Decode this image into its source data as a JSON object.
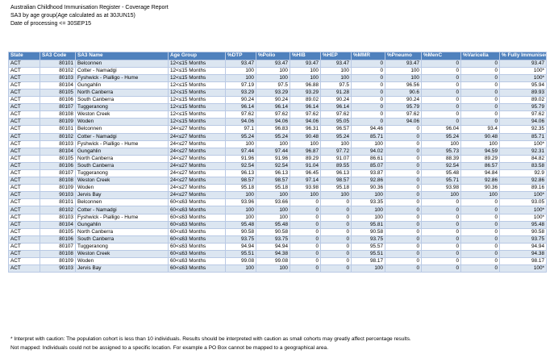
{
  "report": {
    "title": "Australian Childhood Immunisation Register - Coverage Report",
    "subtitle": "SA3 by age group(Age calculated as at 30JUN15)",
    "processing_date": "Date of processing <= 30SEP15"
  },
  "table": {
    "columns": [
      "State",
      "SA3 Code",
      "SA3 Name",
      "Age Group",
      "%DTP",
      "%Polio",
      "%HIB",
      "%HEP",
      "%MMR",
      "%Pneumo",
      "%MenC",
      "%Varicella",
      "% Fully Immunised"
    ],
    "rows": [
      [
        "ACT",
        "80101",
        "Belconnen",
        "12<≤15 Months",
        "93.47",
        "93.47",
        "93.47",
        "93.47",
        "0",
        "93.47",
        "0",
        "0",
        "93.47"
      ],
      [
        "ACT",
        "80102",
        "Cotter - Namadgi",
        "12<≤15 Months",
        "100",
        "100",
        "100",
        "100",
        "0",
        "100",
        "0",
        "0",
        "100*"
      ],
      [
        "ACT",
        "80103",
        "Fyshwick - Pialligo - Hume",
        "12<≤15 Months",
        "100",
        "100",
        "100",
        "100",
        "0",
        "100",
        "0",
        "0",
        "100*"
      ],
      [
        "ACT",
        "80104",
        "Gungahlin",
        "12<≤15 Months",
        "97.19",
        "97.5",
        "96.88",
        "97.5",
        "0",
        "96.56",
        "0",
        "0",
        "95.94"
      ],
      [
        "ACT",
        "80105",
        "North Canberra",
        "12<≤15 Months",
        "93.29",
        "93.29",
        "93.29",
        "91.28",
        "0",
        "90.6",
        "0",
        "0",
        "89.93"
      ],
      [
        "ACT",
        "80106",
        "South Canberra",
        "12<≤15 Months",
        "90.24",
        "90.24",
        "89.02",
        "90.24",
        "0",
        "90.24",
        "0",
        "0",
        "89.02"
      ],
      [
        "ACT",
        "80107",
        "Tuggeranong",
        "12<≤15 Months",
        "96.14",
        "96.14",
        "96.14",
        "96.14",
        "0",
        "95.79",
        "0",
        "0",
        "95.79"
      ],
      [
        "ACT",
        "80108",
        "Weston Creek",
        "12<≤15 Months",
        "97.62",
        "97.62",
        "97.62",
        "97.62",
        "0",
        "97.62",
        "0",
        "0",
        "97.62"
      ],
      [
        "ACT",
        "80109",
        "Woden",
        "12<≤15 Months",
        "94.06",
        "94.06",
        "94.06",
        "95.05",
        "0",
        "94.06",
        "0",
        "0",
        "94.06"
      ],
      [
        "ACT",
        "80101",
        "Belconnen",
        "24<≤27 Months",
        "97.1",
        "96.83",
        "96.31",
        "96.57",
        "94.46",
        "0",
        "96.04",
        "93.4",
        "92.35"
      ],
      [
        "ACT",
        "80102",
        "Cotter - Namadgi",
        "24<≤27 Months",
        "95.24",
        "95.24",
        "90.48",
        "95.24",
        "85.71",
        "0",
        "95.24",
        "90.48",
        "85.71"
      ],
      [
        "ACT",
        "80103",
        "Fyshwick - Pialligo - Hume",
        "24<≤27 Months",
        "100",
        "100",
        "100",
        "100",
        "100",
        "0",
        "100",
        "100",
        "100*"
      ],
      [
        "ACT",
        "80104",
        "Gungahlin",
        "24<≤27 Months",
        "97.44",
        "97.44",
        "96.87",
        "97.72",
        "94.02",
        "0",
        "95.73",
        "94.59",
        "92.31"
      ],
      [
        "ACT",
        "80105",
        "North Canberra",
        "24<≤27 Months",
        "91.96",
        "91.96",
        "89.29",
        "91.07",
        "86.61",
        "0",
        "88.39",
        "89.29",
        "84.82"
      ],
      [
        "ACT",
        "80106",
        "South Canberra",
        "24<≤27 Months",
        "92.54",
        "92.54",
        "91.04",
        "89.55",
        "85.07",
        "0",
        "92.54",
        "86.57",
        "83.58"
      ],
      [
        "ACT",
        "80107",
        "Tuggeranong",
        "24<≤27 Months",
        "96.13",
        "96.13",
        "96.45",
        "96.13",
        "93.87",
        "0",
        "95.48",
        "94.84",
        "92.9"
      ],
      [
        "ACT",
        "80108",
        "Weston Creek",
        "24<≤27 Months",
        "98.57",
        "98.57",
        "97.14",
        "98.57",
        "92.86",
        "0",
        "95.71",
        "92.86",
        "92.86"
      ],
      [
        "ACT",
        "80109",
        "Woden",
        "24<≤27 Months",
        "95.18",
        "95.18",
        "93.98",
        "95.18",
        "90.36",
        "0",
        "93.98",
        "90.36",
        "89.16"
      ],
      [
        "ACT",
        "90103",
        "Jervis Bay",
        "24<≤27 Months",
        "100",
        "100",
        "100",
        "100",
        "100",
        "0",
        "100",
        "100",
        "100*"
      ],
      [
        "ACT",
        "80101",
        "Belconnen",
        "60<≤63 Months",
        "93.96",
        "93.66",
        "0",
        "0",
        "93.35",
        "0",
        "0",
        "0",
        "93.05"
      ],
      [
        "ACT",
        "80102",
        "Cotter - Namadgi",
        "60<≤63 Months",
        "100",
        "100",
        "0",
        "0",
        "100",
        "0",
        "0",
        "0",
        "100*"
      ],
      [
        "ACT",
        "80103",
        "Fyshwick - Pialligo - Hume",
        "60<≤63 Months",
        "100",
        "100",
        "0",
        "0",
        "100",
        "0",
        "0",
        "0",
        "100*"
      ],
      [
        "ACT",
        "80104",
        "Gungahlin",
        "60<≤63 Months",
        "95.48",
        "95.48",
        "0",
        "0",
        "95.81",
        "0",
        "0",
        "0",
        "95.48"
      ],
      [
        "ACT",
        "80105",
        "North Canberra",
        "60<≤63 Months",
        "90.58",
        "90.58",
        "0",
        "0",
        "90.58",
        "0",
        "0",
        "0",
        "90.58"
      ],
      [
        "ACT",
        "80106",
        "South Canberra",
        "60<≤63 Months",
        "93.75",
        "93.75",
        "0",
        "0",
        "93.75",
        "0",
        "0",
        "0",
        "93.75"
      ],
      [
        "ACT",
        "80107",
        "Tuggeranong",
        "60<≤63 Months",
        "94.94",
        "94.94",
        "0",
        "0",
        "95.57",
        "0",
        "0",
        "0",
        "94.94"
      ],
      [
        "ACT",
        "80108",
        "Weston Creek",
        "60<≤63 Months",
        "95.51",
        "94.38",
        "0",
        "0",
        "95.51",
        "0",
        "0",
        "0",
        "94.38"
      ],
      [
        "ACT",
        "80109",
        "Woden",
        "60<≤63 Months",
        "99.08",
        "99.08",
        "0",
        "0",
        "98.17",
        "0",
        "0",
        "0",
        "98.17"
      ],
      [
        "ACT",
        "90103",
        "Jervis Bay",
        "60<≤63 Months",
        "100",
        "100",
        "0",
        "0",
        "100",
        "0",
        "0",
        "0",
        "100*"
      ]
    ]
  },
  "notes": {
    "caution": "* Interpret with caution: The population cohort is less than 10 individuals. Results should be interpreted with caution as small cohorts may greatly affect percentage results.",
    "not_mapped": "Not mapped: Individuals could not be assigned to a specific location. For example a PO Box cannot be mapped to a geographical area."
  }
}
